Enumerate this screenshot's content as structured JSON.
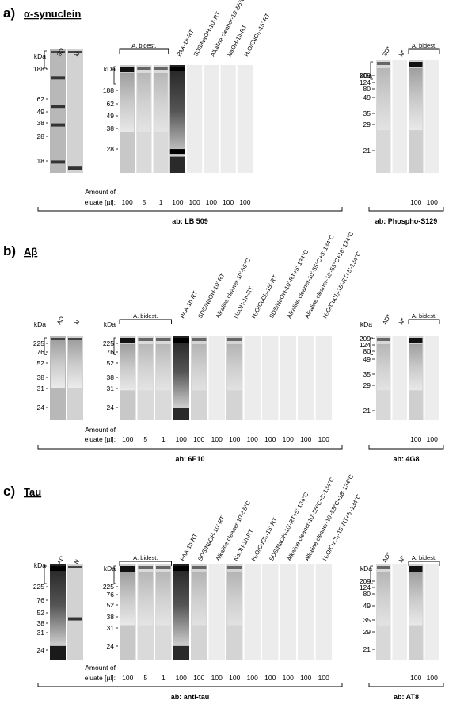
{
  "panels": [
    {
      "id": "a",
      "letter": "a)",
      "title": "α-synuclein",
      "y": 0,
      "blots": [
        {
          "kda": "kDa",
          "markers": [
            "188",
            "62",
            "49",
            "38",
            "28",
            "18"
          ],
          "lanes": [
            "SD",
            "N"
          ],
          "bracket": "",
          "amounts": [],
          "ab": ""
        },
        {
          "kda": "kDa",
          "markers": [
            "188",
            "62",
            "49",
            "38",
            "28"
          ],
          "lanes": [
            "",
            "",
            "",
            "PAA-1h-RT",
            "SDS/NaOH-10'-RT",
            "Alkaline cleaner-10'-55°C",
            "NaOH-1h-RT",
            "H₂O/CuCl₂-15'-RT"
          ],
          "bracket": "A. bidest.",
          "amount_label_1": "Amount of",
          "amount_label_2": "eluate [µl]:",
          "amounts": [
            "100",
            "5",
            "1",
            "100",
            "100",
            "100",
            "100",
            "100"
          ],
          "ab": "ab: LB 509"
        },
        {
          "kda": "kDa",
          "markers": [
            "209",
            "124",
            "80",
            "49",
            "35",
            "29",
            "21"
          ],
          "lanes": [
            "SD*",
            "N*",
            "",
            ""
          ],
          "bracket": "A. bidest.",
          "amounts": [
            "",
            "",
            "100",
            "100"
          ],
          "ab": "ab: Phospho-S129"
        }
      ]
    },
    {
      "id": "b",
      "letter": "b)",
      "title": "Aβ",
      "y": 300,
      "blots": [
        {
          "kda": "kDa",
          "markers": [
            "225",
            "76",
            "52",
            "38",
            "31",
            "24"
          ],
          "lanes": [
            "AD",
            "N"
          ],
          "bracket": "",
          "amounts": [],
          "ab": ""
        },
        {
          "kda": "kDa",
          "markers": [
            "225",
            "76",
            "52",
            "38",
            "31",
            "24"
          ],
          "lanes": [
            "",
            "",
            "",
            "PAA-1h-RT",
            "SDS/NaOH-10'-RT",
            "Alkaline cleaner-10'-55°C",
            "NaOH-1h-RT",
            "H₂O/CuCl₂-15'-RT",
            "SDS/NaOH-10'-RT+5'-134°C",
            "Alkaline cleaner-10'-55°C+5'-134°C",
            "Alkaline cleaner-10'-55°C+18'-134°C",
            "H₂O/CuCl₂-15'-RT+5'-134°C"
          ],
          "bracket": "A. bidest.",
          "amount_label_1": "Amount of",
          "amount_label_2": "eluate [µl]:",
          "amounts": [
            "100",
            "5",
            "1",
            "100",
            "100",
            "100",
            "100",
            "100",
            "100",
            "100",
            "100",
            "100"
          ],
          "ab": "ab: 6E10"
        },
        {
          "kda": "kDa",
          "markers": [
            "209",
            "124",
            "80",
            "49",
            "35",
            "29",
            "21"
          ],
          "lanes": [
            "AD*",
            "N*",
            "",
            ""
          ],
          "bracket": "A. bidest.",
          "amounts": [
            "",
            "",
            "100",
            "100"
          ],
          "ab": "ab: 4G8"
        }
      ]
    },
    {
      "id": "c",
      "letter": "c)",
      "title": "Tau",
      "y": 603,
      "blots": [
        {
          "kda": "kDa",
          "markers": [
            "225",
            "76",
            "52",
            "38",
            "31",
            "24"
          ],
          "lanes": [
            "AD",
            "N"
          ],
          "bracket": "",
          "amounts": [],
          "ab": ""
        },
        {
          "kda": "kDa",
          "markers": [
            "225",
            "76",
            "52",
            "38",
            "31",
            "24"
          ],
          "lanes": [
            "",
            "",
            "",
            "PAA-1h-RT",
            "SDS/NaOH-10'-RT",
            "Alkaline cleaner-10'-55°C",
            "NaOH-1h-RT",
            "H₂O/CuCl₂-15'-RT",
            "SDS/NaOH-10'-RT+5'-134°C",
            "Alkaline cleaner-10'-55°C+5'-134°C",
            "Alkaline cleaner-10'-55°C+18'-134°C",
            "H₂O/CuCl₂-15'-RT+5'-134°C"
          ],
          "bracket": "A. bidest.",
          "amount_label_1": "Amount of",
          "amount_label_2": "eluate [µl]:",
          "amounts": [
            "100",
            "5",
            "1",
            "100",
            "100",
            "100",
            "100",
            "100",
            "100",
            "100",
            "100",
            "100"
          ],
          "ab": "ab: anti-tau"
        },
        {
          "kda": "kDa",
          "markers": [
            "209",
            "124",
            "80",
            "49",
            "35",
            "29",
            "21"
          ],
          "lanes": [
            "AD*",
            "N*",
            "",
            ""
          ],
          "bracket": "A. bidest.",
          "amounts": [
            "",
            "",
            "100",
            "100"
          ],
          "ab": "ab: AT8"
        }
      ]
    }
  ]
}
